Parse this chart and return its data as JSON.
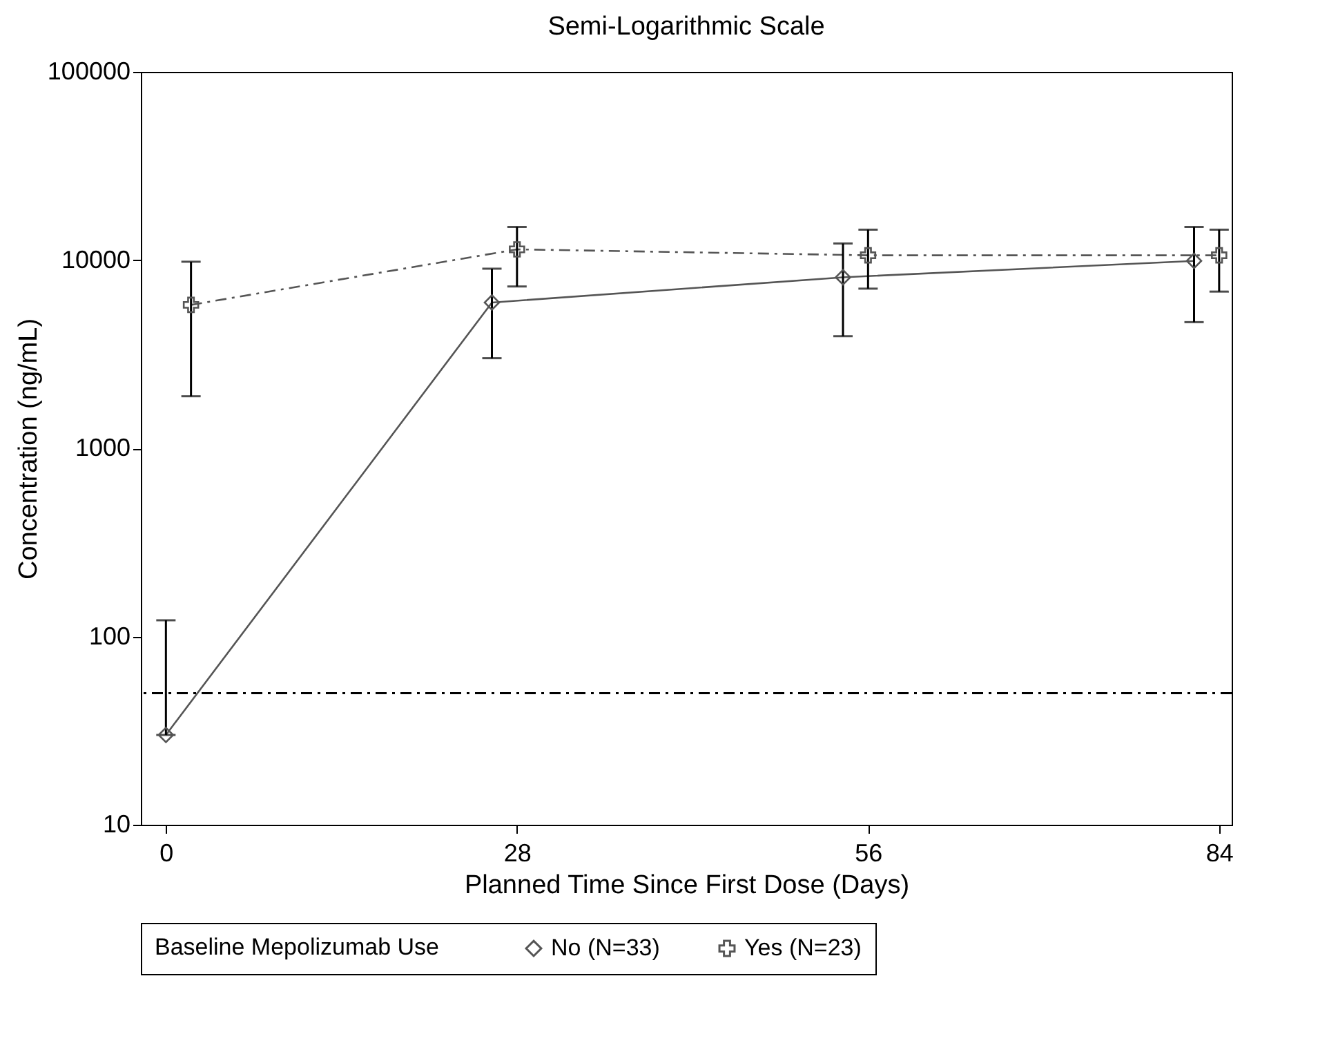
{
  "chart_data": {
    "type": "line",
    "title": "Semi-Logarithmic Scale",
    "xlabel": "Planned Time Since First Dose (Days)",
    "ylabel": "Concentration (ng/mL)",
    "legend_title": "Baseline Mepolizumab Use",
    "legend": "bottom",
    "log": "y",
    "grid": false,
    "xlim": [
      -2,
      85
    ],
    "xticks": [
      0,
      28,
      56,
      84
    ],
    "ylim": [
      10,
      100000
    ],
    "yticks": [
      10,
      100,
      1000,
      10000,
      100000
    ],
    "series": [
      {
        "name": "No (N=33)",
        "color": "#555555",
        "marker": "diamond",
        "line_style": "solid",
        "x": [
          0,
          26,
          54,
          82
        ],
        "values": [
          30,
          5950,
          8100,
          9900
        ],
        "errors": [
          [
            30,
            122
          ],
          [
            3010,
            9000
          ],
          [
            3940,
            12250
          ],
          [
            4680,
            15000
          ]
        ]
      },
      {
        "name": "Yes (N=23)",
        "color": "#555555",
        "marker": "cross",
        "line_style": "dashed",
        "x": [
          2,
          28,
          56,
          84
        ],
        "values": [
          5780,
          11400,
          10600,
          10600
        ],
        "errors": [
          [
            1890,
            9800
          ],
          [
            7240,
            15000
          ],
          [
            7050,
            14500
          ],
          [
            6800,
            14500
          ]
        ]
      }
    ],
    "ref_lines": [
      {
        "axis": "y",
        "value": 50,
        "line_style": "dashed",
        "color": "#000000"
      }
    ]
  }
}
